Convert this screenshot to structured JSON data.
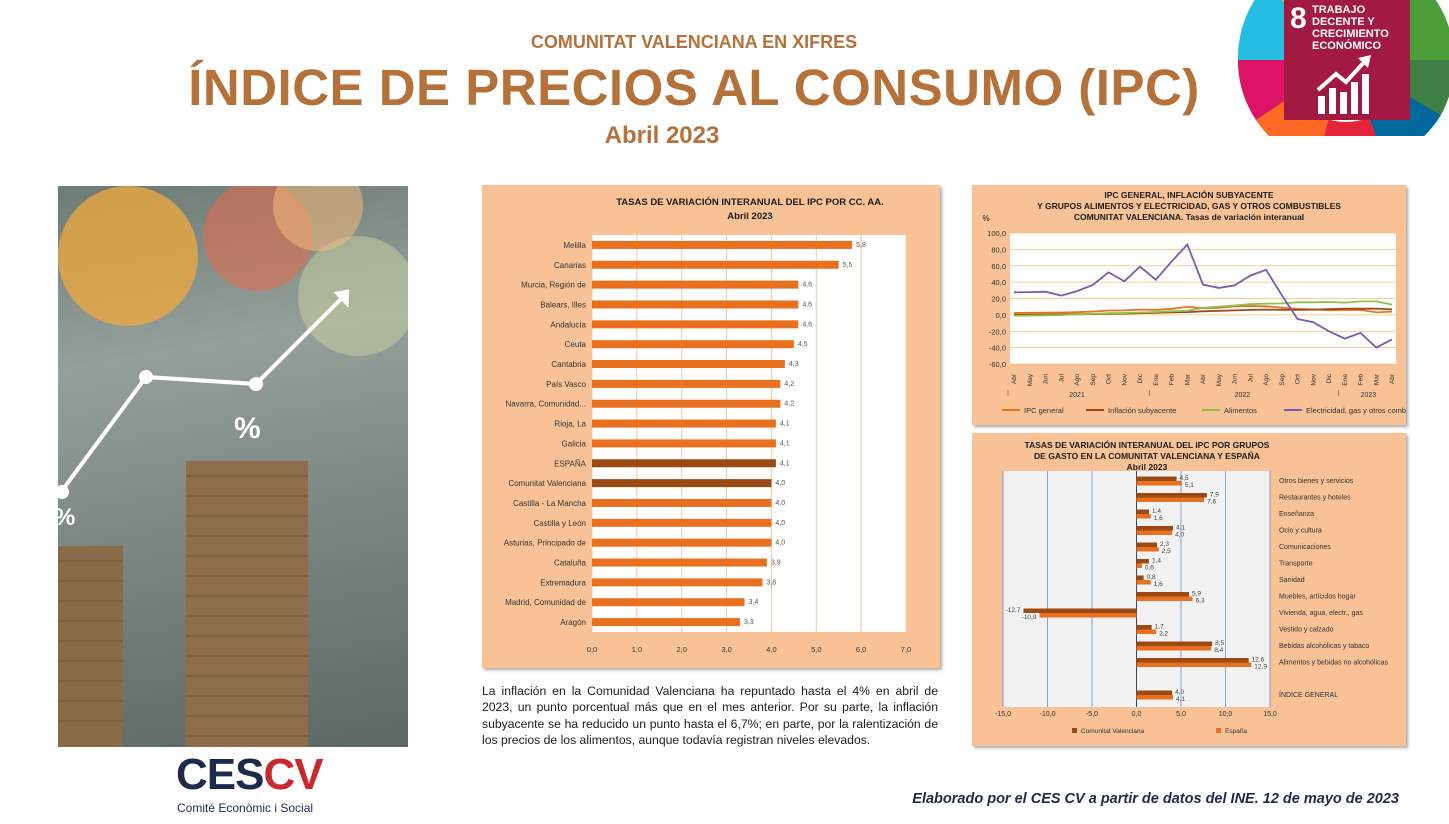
{
  "header": {
    "kicker": "COMUNITAT VALENCIANA EN XIFRES",
    "title": "ÍNDICE DE PRECIOS AL CONSUMO (IPC)",
    "subtitle": "Abril 2023"
  },
  "sdg_badge": {
    "number": "8",
    "text": "TRABAJO DECENTE Y CRECIMIENTO ECONÓMICO",
    "color": "#a21942"
  },
  "photo": {
    "percent_label": "%",
    "percent_label_2": "%"
  },
  "description": "La inflación en la Comunidad Valenciana ha repuntado hasta el 4% en abril de 2023, un punto porcentual más que en el mes anterior. Por su parte, la inflación subyacente se ha reducido un punto hasta el 6,7%; en parte, por la ralentización de los precios de los alimentos, aunque todavía registran niveles elevados.",
  "logo": {
    "ces": "CES",
    "cv": "CV",
    "subtitle": "Comité Econòmic i Social"
  },
  "footer": "Elaborado por el CES CV a partir de datos del INE. 12 de mayo de 2023",
  "colors": {
    "accent": "#b5713a",
    "panel_bg": "#f8c296",
    "bar_orange": "#e8701e",
    "bar_brown": "#9b4a14",
    "navy": "#1d2a4c"
  },
  "chart_data": [
    {
      "type": "bar",
      "orientation": "horizontal",
      "title": "TASAS DE VARIACIÓN INTERANUAL DEL IPC POR CC. AA.",
      "subtitle": "Abril 2023",
      "categories": [
        "Melilla",
        "Canarias",
        "Murcia, Región de",
        "Balears, Illes",
        "Andalucía",
        "Ceuta",
        "Cantabria",
        "País Vasco",
        "Navarra, Comunidad...",
        "Rioja, La",
        "Galicia",
        "ESPAÑA",
        "Comunitat Valenciana",
        "Castilla - La Mancha",
        "Castilla y León",
        "Asturias, Principado de",
        "Cataluña",
        "Extremadura",
        "Madrid, Comunidad de",
        "Aragón"
      ],
      "values": [
        5.8,
        5.5,
        4.6,
        4.6,
        4.6,
        4.5,
        4.3,
        4.2,
        4.2,
        4.1,
        4.1,
        4.1,
        4.0,
        4.0,
        4.0,
        4.0,
        3.9,
        3.8,
        3.4,
        3.3
      ],
      "value_labels": [
        "5,8",
        "5,5",
        "4,6",
        "4,6",
        "4,6",
        "4,5",
        "4,3",
        "4,2",
        "4,2",
        "4,1",
        "4,1",
        "4,1",
        "4,0",
        "4,0",
        "4,0",
        "4,0",
        "3,9",
        "3,8",
        "3,4",
        "3,3"
      ],
      "highlight": [
        "ESPAÑA",
        "Comunitat Valenciana"
      ],
      "xlim": [
        0,
        7
      ],
      "xticks": [
        "0,0",
        "1,0",
        "2,0",
        "3,0",
        "4,0",
        "5,0",
        "6,0",
        "7,0"
      ],
      "grid": true
    },
    {
      "type": "line",
      "title": "IPC GENERAL, INFLACIÓN SUBYACENTE",
      "title_2": "Y GRUPOS ALIMENTOS Y ELECTRICIDAD, GAS Y OTROS COMBUSTIBLES",
      "title_3": "COMUNITAT VALENCIANA. Tasas de variación interanual",
      "ylabel": "%",
      "x": [
        "Abr",
        "May",
        "Jun",
        "Jul",
        "Ago",
        "Sep",
        "Oct",
        "Nov",
        "Dic",
        "Ene",
        "Feb",
        "Mar",
        "Abr",
        "May",
        "Jun",
        "Jul",
        "Ago",
        "Sep",
        "Oct",
        "Nov",
        "Dic",
        "Ene",
        "Feb",
        "Mar",
        "Abr"
      ],
      "year_labels": [
        {
          "label": "2021",
          "from": 0,
          "to": 8
        },
        {
          "label": "2022",
          "from": 9,
          "to": 20
        },
        {
          "label": "2023",
          "from": 21,
          "to": 24
        }
      ],
      "ylim": [
        -60,
        100
      ],
      "yticks": [
        "100,0",
        "80,0",
        "60,0",
        "40,0",
        "20,0",
        "0,0",
        "-20,0",
        "-40,0",
        "-60,0"
      ],
      "series": [
        {
          "name": "IPC general",
          "color": "#e8701e",
          "values": [
            2.2,
            2.5,
            2.7,
            2.9,
            3.3,
            4.0,
            5.4,
            5.5,
            6.5,
            6.1,
            7.4,
            9.8,
            8.3,
            8.7,
            10.2,
            10.8,
            10.5,
            8.9,
            7.3,
            6.7,
            5.7,
            5.9,
            6.1,
            3.0,
            4.0
          ]
        },
        {
          "name": "Inflación subyacente",
          "color": "#9b4a14",
          "values": [
            0.0,
            0.2,
            0.3,
            0.6,
            0.8,
            1.0,
            1.4,
            1.7,
            2.1,
            2.4,
            3.0,
            3.4,
            4.4,
            4.9,
            5.5,
            6.1,
            6.4,
            6.2,
            6.2,
            6.3,
            7.0,
            7.5,
            7.6,
            7.7,
            6.7
          ]
        },
        {
          "name": "Alimentos",
          "color": "#8cc24a",
          "values": [
            -1.0,
            -0.8,
            -0.5,
            -0.2,
            0.4,
            1.2,
            2.0,
            2.3,
            2.9,
            3.5,
            4.5,
            5.0,
            8.5,
            10.0,
            11.5,
            13.0,
            13.8,
            14.0,
            15.4,
            15.3,
            15.7,
            15.0,
            16.5,
            16.5,
            12.5
          ]
        },
        {
          "name": "Electricidad, gas y otros comb.",
          "color": "#7a5ab0",
          "values": [
            27.5,
            27.8,
            28.3,
            23.5,
            29.0,
            36.5,
            52.0,
            41.0,
            59.0,
            43.0,
            65.0,
            86.0,
            37.0,
            33.0,
            36.0,
            48.0,
            55.0,
            24.0,
            -5.0,
            -9.0,
            -20.0,
            -29.0,
            -22.0,
            -40.0,
            -30.0
          ]
        }
      ],
      "legend_position": "bottom",
      "grid": true
    },
    {
      "type": "bar",
      "orientation": "horizontal",
      "title": "TASAS DE VARIACIÓN INTERANUAL DEL IPC POR GRUPOS",
      "title_2": "DE GASTO EN LA COMUNITAT VALENCIANA Y ESPAÑA",
      "subtitle": "Abril 2023",
      "categories": [
        "Otros bienes y servicios",
        "Restaurantes y hoteles",
        "Enseñanza",
        "Ocio y cultura",
        "Comunicaciones",
        "Transporte",
        "Sanidad",
        "Muebles, artículos hogar",
        "Vivienda, agua, electr., gas",
        "Vestido y calzado",
        "Bebidas alcohólicas y tabaco",
        "Alimentos y bebidas no alcohólicas",
        "ÍNDICE GENERAL"
      ],
      "series": [
        {
          "name": "Comunitat Valenciana",
          "color": "#9b4a14",
          "values": [
            4.5,
            7.9,
            1.4,
            4.1,
            2.3,
            1.4,
            0.8,
            5.9,
            -12.7,
            1.7,
            8.5,
            12.6,
            4.0
          ],
          "labels": [
            "4,5",
            "7,9",
            "1,4",
            "4,1",
            "2,3",
            "1,4",
            "0,8",
            "5,9",
            "-12,7",
            "1,7",
            "8,5",
            "12,6",
            "4,0"
          ]
        },
        {
          "name": "España",
          "color": "#e8701e",
          "values": [
            5.1,
            7.6,
            1.6,
            4.0,
            2.5,
            0.6,
            1.6,
            6.3,
            -10.9,
            2.2,
            8.4,
            12.9,
            4.1
          ],
          "labels": [
            "5,1",
            "7,6",
            "1,6",
            "4,0",
            "2,5",
            "0,6",
            "1,6",
            "6,3",
            "-10,9",
            "2,2",
            "8,4",
            "12,9",
            "4,1"
          ]
        }
      ],
      "xlim": [
        -15,
        15
      ],
      "xticks": [
        "-15,0",
        "-10,0",
        "-5,0",
        "0,0",
        "5,0",
        "10,0",
        "15,0"
      ],
      "legend_position": "bottom",
      "grid": true
    }
  ]
}
